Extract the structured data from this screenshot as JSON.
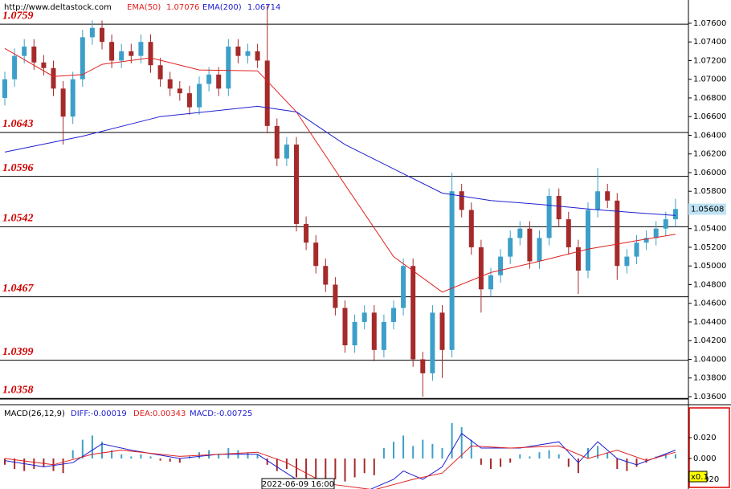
{
  "chart_data": {
    "type": "candlestick",
    "source": "http://www.deltastock.com",
    "categories": [
      null,
      null,
      null,
      null,
      null,
      null,
      null,
      null,
      null,
      null,
      null,
      null,
      null,
      null,
      null,
      null,
      null,
      null,
      null,
      null,
      null,
      null,
      null,
      null,
      null,
      null,
      null,
      null,
      null,
      null,
      "2022-06-09 16:00",
      null,
      null,
      null,
      null,
      null,
      null,
      null,
      null,
      null,
      null,
      null,
      null,
      null,
      null,
      null,
      null,
      null,
      null,
      null,
      null,
      null,
      null,
      null,
      null,
      null,
      null,
      null,
      null,
      null,
      null,
      null,
      null,
      null,
      null,
      null,
      null,
      null,
      null,
      null
    ],
    "open": [
      1.068,
      1.07,
      1.0725,
      1.0735,
      1.0718,
      1.0712,
      1.069,
      1.066,
      1.07,
      1.0745,
      1.0755,
      1.074,
      1.072,
      1.073,
      1.0725,
      1.074,
      1.0715,
      1.07,
      1.069,
      1.0685,
      1.067,
      1.0695,
      1.0705,
      1.069,
      1.0735,
      1.0725,
      1.073,
      1.072,
      1.065,
      1.0615,
      1.063,
      1.0545,
      1.0525,
      1.05,
      1.048,
      1.0455,
      1.0415,
      1.044,
      1.045,
      1.041,
      1.044,
      1.0455,
      1.05,
      1.04,
      1.0385,
      1.045,
      1.041,
      1.058,
      1.056,
      1.052,
      1.0475,
      1.049,
      1.051,
      1.053,
      1.054,
      1.0505,
      1.053,
      1.0575,
      1.055,
      1.052,
      1.0495,
      1.056,
      1.058,
      1.057,
      1.05,
      1.051,
      1.0525,
      1.053,
      1.054,
      1.055
    ],
    "high": [
      1.0708,
      1.0733,
      1.0743,
      1.0743,
      1.0726,
      1.072,
      1.0698,
      1.0708,
      1.0753,
      1.0763,
      1.0763,
      1.0748,
      1.0738,
      1.0738,
      1.0748,
      1.0748,
      1.0723,
      1.0708,
      1.0698,
      1.0693,
      1.0703,
      1.0713,
      1.0713,
      1.0743,
      1.0743,
      1.0738,
      1.0738,
      1.078,
      1.0658,
      1.0638,
      1.0638,
      1.0553,
      1.0533,
      1.0508,
      1.0488,
      1.0463,
      1.0448,
      1.0458,
      1.0458,
      1.0448,
      1.0463,
      1.0508,
      1.0508,
      1.0408,
      1.0458,
      1.0458,
      1.06,
      1.0588,
      1.0568,
      1.0528,
      1.0498,
      1.0518,
      1.0538,
      1.0548,
      1.0548,
      1.0538,
      1.0583,
      1.0583,
      1.0558,
      1.0528,
      1.0568,
      1.0605,
      1.0588,
      1.0578,
      1.0518,
      1.0533,
      1.0538,
      1.0548,
      1.0558,
      1.0572
    ],
    "low": [
      1.0672,
      1.0692,
      1.0717,
      1.071,
      1.0704,
      1.0682,
      1.063,
      1.0652,
      1.0692,
      1.0737,
      1.0732,
      1.0712,
      1.0712,
      1.0717,
      1.0717,
      1.0707,
      1.0692,
      1.0682,
      1.0677,
      1.0662,
      1.0662,
      1.0687,
      1.0682,
      1.0682,
      1.0717,
      1.0717,
      1.0712,
      1.0642,
      1.0607,
      1.0607,
      1.0537,
      1.0517,
      1.0492,
      1.0472,
      1.0447,
      1.0407,
      1.0407,
      1.0432,
      1.0398,
      1.0402,
      1.0432,
      1.0447,
      1.0392,
      1.036,
      1.0377,
      1.038,
      1.0402,
      1.0552,
      1.0512,
      1.045,
      1.0467,
      1.0482,
      1.0502,
      1.0522,
      1.0497,
      1.0497,
      1.0522,
      1.0542,
      1.0512,
      1.047,
      1.0487,
      1.0552,
      1.0562,
      1.0485,
      1.0492,
      1.0502,
      1.0517,
      1.0522,
      1.0532,
      1.0542
    ],
    "close": [
      1.07,
      1.0725,
      1.0735,
      1.0718,
      1.0712,
      1.069,
      1.066,
      1.07,
      1.0745,
      1.0755,
      1.074,
      1.072,
      1.073,
      1.0725,
      1.074,
      1.0715,
      1.07,
      1.069,
      1.0685,
      1.067,
      1.0695,
      1.0705,
      1.069,
      1.0735,
      1.0725,
      1.073,
      1.072,
      1.065,
      1.0615,
      1.063,
      1.0545,
      1.0525,
      1.05,
      1.048,
      1.0455,
      1.0415,
      1.044,
      1.045,
      1.041,
      1.044,
      1.0455,
      1.05,
      1.04,
      1.0385,
      1.045,
      1.041,
      1.058,
      1.056,
      1.052,
      1.0475,
      1.049,
      1.051,
      1.053,
      1.054,
      1.0505,
      1.053,
      1.0575,
      1.055,
      1.052,
      1.0495,
      1.056,
      1.058,
      1.057,
      1.05,
      1.051,
      1.0525,
      1.053,
      1.054,
      1.055,
      1.0561
    ],
    "up_color": "#3d9fc9",
    "down_color": "#a52a2a",
    "series": [
      {
        "name": "EMA(50)",
        "legend_value": 1.07076,
        "color": "#e02020",
        "x": [
          0,
          5,
          8,
          10,
          15,
          20,
          26,
          30,
          35,
          40,
          45,
          50,
          55,
          60,
          65,
          69
        ],
        "values": [
          1.0733,
          1.0703,
          1.0705,
          1.0716,
          1.0723,
          1.071,
          1.0709,
          1.0665,
          1.0587,
          1.051,
          1.0472,
          1.0493,
          1.0505,
          1.0518,
          1.0527,
          1.0534
        ]
      },
      {
        "name": "EMA(200)",
        "legend_value": 1.06714,
        "color": "#2020d0",
        "x": [
          0,
          8,
          16,
          26,
          30,
          35,
          40,
          45,
          50,
          55,
          60,
          65,
          69
        ],
        "values": [
          1.0622,
          1.0639,
          1.066,
          1.0671,
          1.0665,
          1.063,
          1.0604,
          1.0578,
          1.057,
          1.0566,
          1.0561,
          1.0557,
          1.0554
        ]
      }
    ],
    "levels": [
      1.0759,
      1.0643,
      1.0596,
      1.0542,
      1.0467,
      1.0399,
      1.0358
    ],
    "last_price": 1.05608,
    "ylim": [
      1.03574,
      1.07849
    ],
    "yticks": [
      {
        "value": 1.036,
        "label": "1.03600"
      },
      {
        "value": 1.038,
        "label": "1.03800"
      },
      {
        "value": 1.04,
        "label": "1.04000"
      },
      {
        "value": 1.042,
        "label": "1.04200"
      },
      {
        "value": 1.044,
        "label": "1.04400"
      },
      {
        "value": 1.046,
        "label": "1.04600"
      },
      {
        "value": 1.048,
        "label": "1.04800"
      },
      {
        "value": 1.05,
        "label": "1.05000"
      },
      {
        "value": 1.052,
        "label": "1.05200"
      },
      {
        "value": 1.054,
        "label": "1.05400"
      },
      {
        "value": 1.056,
        "label": "1.05600"
      },
      {
        "value": 1.058,
        "label": "1.05800"
      },
      {
        "value": 1.06,
        "label": "1.06000"
      },
      {
        "value": 1.062,
        "label": "1.06200"
      },
      {
        "value": 1.064,
        "label": "1.06400"
      },
      {
        "value": 1.066,
        "label": "1.06600"
      },
      {
        "value": 1.068,
        "label": "1.06800"
      },
      {
        "value": 1.07,
        "label": "1.07000"
      },
      {
        "value": 1.072,
        "label": "1.07200"
      },
      {
        "value": 1.074,
        "label": "1.07400"
      },
      {
        "value": 1.076,
        "label": "1.07600"
      }
    ],
    "macd": {
      "title": "MACD(26,12,9)",
      "labels": [
        "DIFF:-0.00019",
        "DEA:0.00343",
        "MACD:-0.00725"
      ],
      "scale_note": "x0.1",
      "histogram": [
        -0.006,
        -0.01,
        -0.012,
        -0.01,
        -0.008,
        -0.012,
        -0.014,
        0.008,
        0.018,
        0.022,
        0.016,
        0.008,
        0.004,
        0.002,
        0.004,
        0.002,
        -0.002,
        -0.003,
        -0.004,
        0.002,
        0.006,
        0.008,
        0.004,
        0.01,
        0.008,
        0.006,
        0.004,
        -0.006,
        -0.012,
        -0.01,
        -0.018,
        -0.022,
        -0.024,
        -0.022,
        -0.02,
        -0.022,
        -0.018,
        -0.014,
        -0.016,
        0.01,
        0.016,
        0.022,
        0.012,
        0.018,
        0.014,
        0.01,
        0.034,
        0.03,
        0.018,
        -0.006,
        -0.01,
        -0.008,
        -0.004,
        0.004,
        0.002,
        0.006,
        0.008,
        0.004,
        -0.008,
        -0.014,
        0.01,
        0.012,
        0.006,
        -0.01,
        -0.012,
        -0.008,
        -0.004,
        0.002,
        0.004,
        0.004
      ],
      "pos_color": "#3d9fc9",
      "neg_color": "#a52a2a",
      "series": [
        {
          "name": "DIFF",
          "color": "#2020d0",
          "x": [
            0,
            4,
            7,
            10,
            13,
            18,
            22,
            26,
            28,
            32,
            36,
            40,
            41,
            43,
            45,
            47,
            49,
            53,
            57,
            59,
            61,
            63,
            65,
            69
          ],
          "values": [
            -0.002,
            -0.008,
            -0.004,
            0.014,
            0.008,
            0.0,
            0.004,
            0.004,
            -0.008,
            -0.032,
            -0.036,
            -0.02,
            -0.012,
            -0.02,
            -0.008,
            0.024,
            0.01,
            0.01,
            0.016,
            -0.004,
            0.016,
            0.0,
            -0.006,
            0.008
          ]
        },
        {
          "name": "DEA",
          "color": "#e02020",
          "x": [
            0,
            5,
            9,
            12,
            18,
            22,
            26,
            29,
            33,
            38,
            42,
            45,
            48,
            52,
            57,
            60,
            63,
            66,
            69
          ],
          "values": [
            0.0,
            -0.006,
            0.004,
            0.008,
            0.002,
            0.004,
            0.006,
            -0.004,
            -0.024,
            -0.03,
            -0.02,
            -0.014,
            0.012,
            0.01,
            0.012,
            0.0,
            0.008,
            -0.002,
            0.006
          ]
        }
      ],
      "ylim": [
        -0.0292,
        0.0508
      ],
      "yticks": [
        {
          "value": 0.02,
          "label": "0.020"
        },
        {
          "value": 0,
          "label": "0.000"
        },
        {
          "value": -0.02,
          "label": "-0.020"
        }
      ]
    }
  }
}
